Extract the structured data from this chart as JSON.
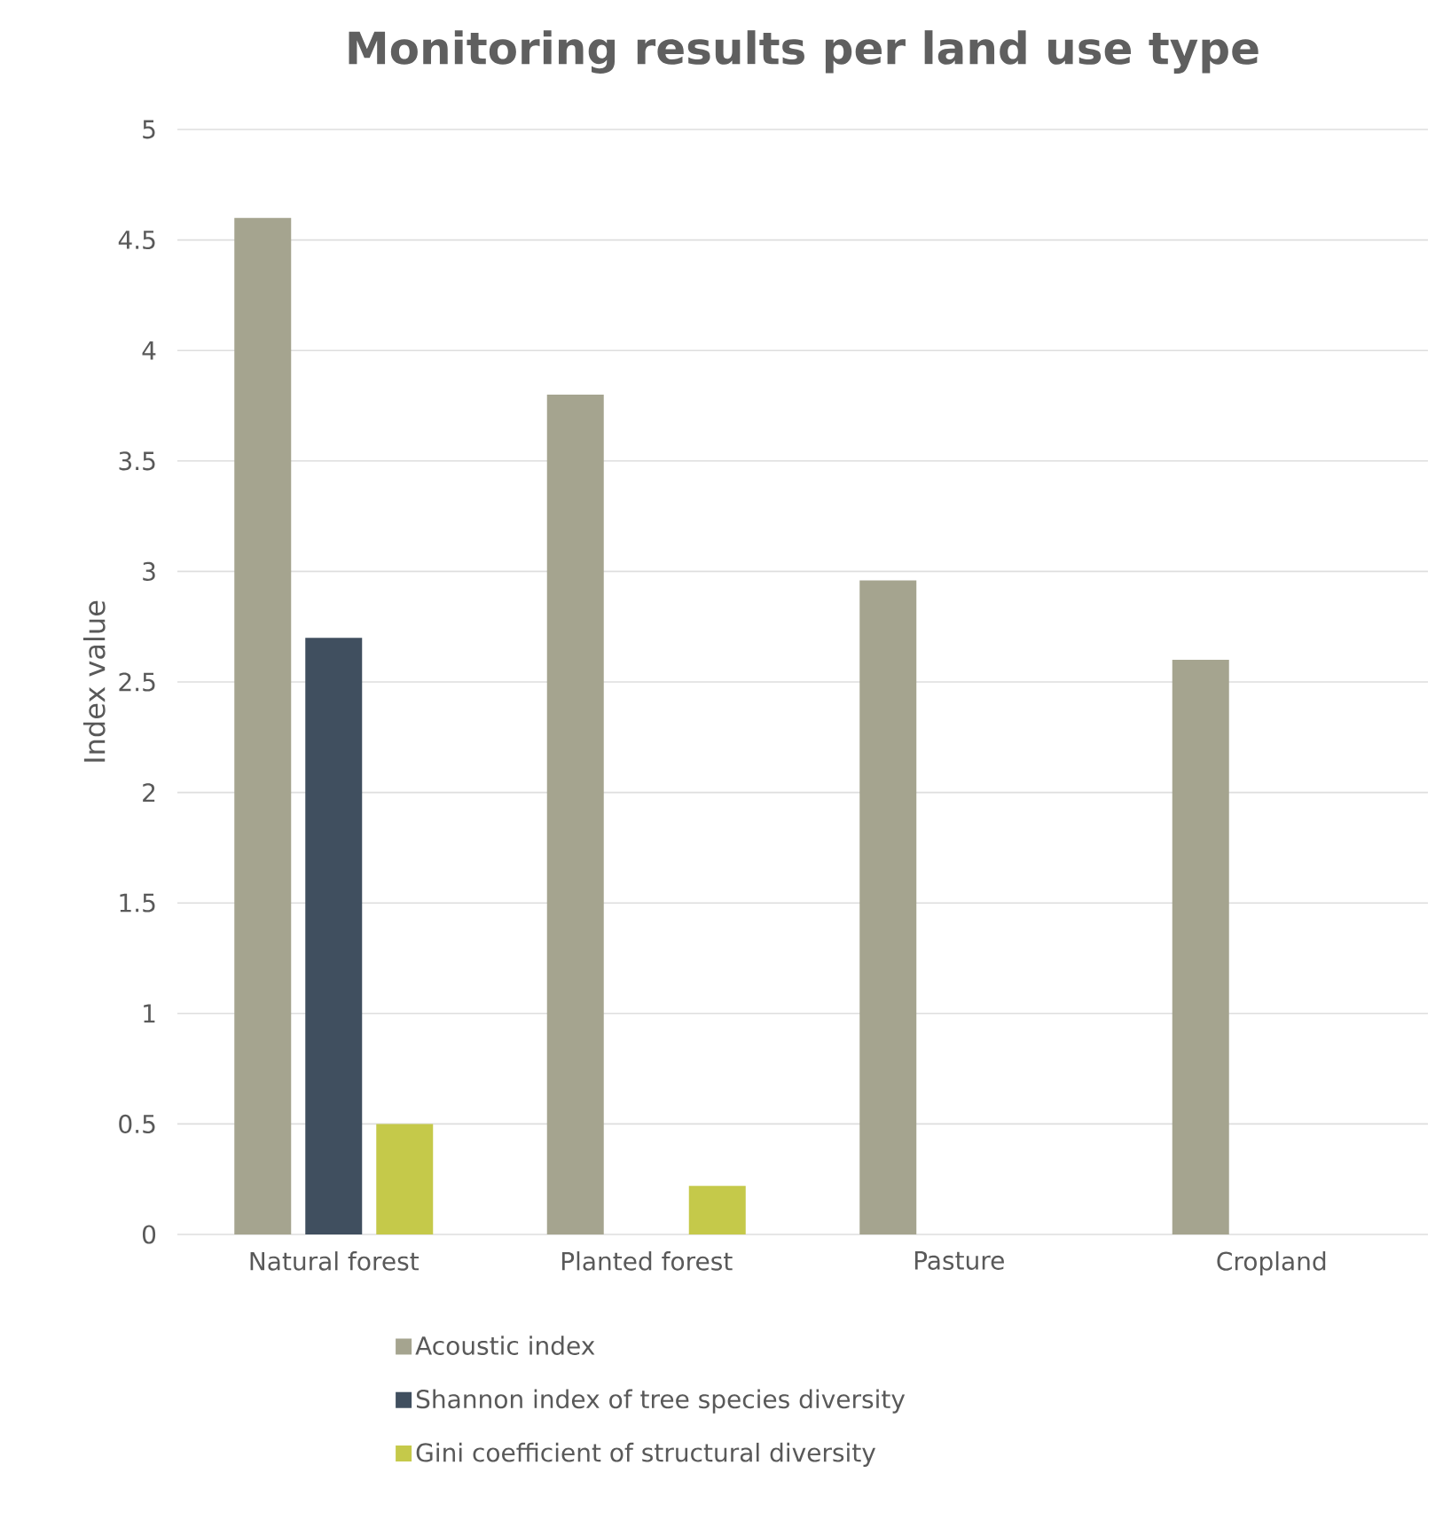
{
  "chart_data": {
    "type": "bar",
    "title": "Monitoring results per land use type",
    "ylabel": "Index value",
    "categories": [
      "Natural forest",
      "Planted forest",
      "Pasture",
      "Cropland"
    ],
    "series": [
      {
        "name": "Acoustic index",
        "color": "#a5a48f",
        "values": [
          4.6,
          3.8,
          2.96,
          2.6
        ]
      },
      {
        "name": "Shannon index of tree species diversity",
        "color": "#404f5f",
        "values": [
          2.7,
          null,
          null,
          null
        ]
      },
      {
        "name": "Gini coefficient of structural diversity",
        "color": "#c5c94a",
        "values": [
          0.5,
          0.22,
          null,
          null
        ]
      }
    ],
    "ylim": [
      0,
      5
    ],
    "yticks": [
      0,
      0.5,
      1,
      1.5,
      2,
      2.5,
      3,
      3.5,
      4,
      4.5,
      5
    ],
    "grid": "y",
    "legend": "bottom"
  }
}
